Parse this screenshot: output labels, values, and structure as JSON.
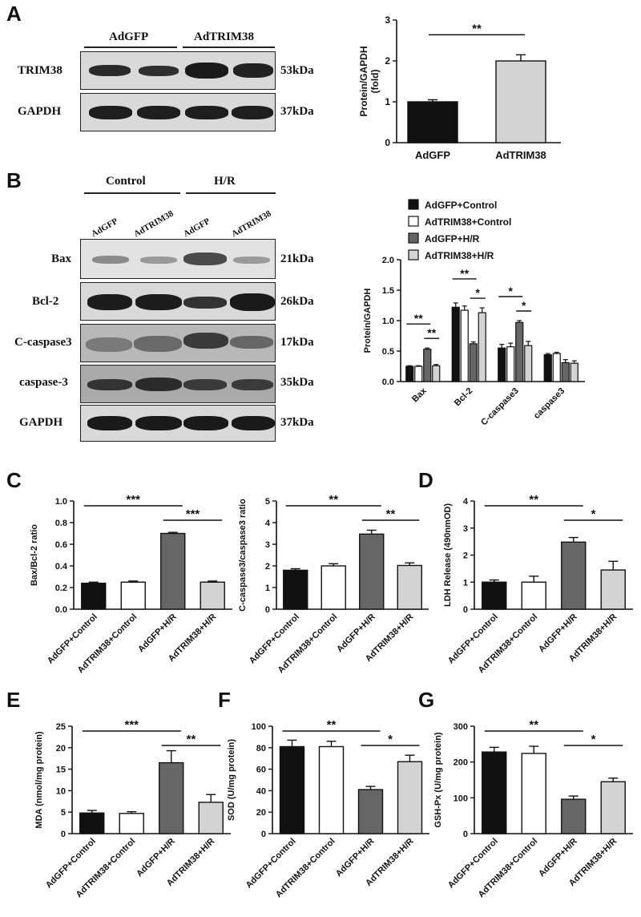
{
  "panels": {
    "A": "A",
    "B": "B",
    "C": "C",
    "D": "D",
    "E": "E",
    "F": "F",
    "G": "G"
  },
  "blot_A": {
    "groups": [
      "AdGFP",
      "AdTRIM38"
    ],
    "rows": [
      {
        "name": "TRIM38",
        "kda": "53kDa"
      },
      {
        "name": "GAPDH",
        "kda": "37kDa"
      }
    ]
  },
  "blot_B": {
    "groups": [
      "Control",
      "H/R"
    ],
    "lanes": [
      "AdGFP",
      "AdTRIM38",
      "AdGFP",
      "AdTRIM38"
    ],
    "rows": [
      {
        "name": "Bax",
        "kda": "21kDa"
      },
      {
        "name": "Bcl-2",
        "kda": "26kDa"
      },
      {
        "name": "C-caspase3",
        "kda": "17kDa"
      },
      {
        "name": "caspase-3",
        "kda": "35kDa"
      },
      {
        "name": "GAPDH",
        "kda": "37kDa"
      }
    ]
  },
  "colors": {
    "black": "#111111",
    "white": "#ffffff",
    "dark_gray": "#666666",
    "light_gray": "#d3d3d3"
  },
  "chart_data": [
    {
      "id": "A",
      "type": "bar",
      "categories": [
        "AdGFP",
        "AdTRIM38"
      ],
      "values": [
        1.0,
        2.0
      ],
      "errors": [
        0.05,
        0.15
      ],
      "ylabel": "Protein/GAPDH (fold)",
      "ylim": [
        0,
        3
      ],
      "yticks": [
        0,
        1,
        2,
        3
      ],
      "significance": [
        {
          "from": 0,
          "to": 1,
          "label": "**"
        }
      ]
    },
    {
      "id": "B",
      "type": "bar",
      "categories": [
        "Bax",
        "Bcl-2",
        "C-caspase3",
        "caspase3"
      ],
      "series": [
        {
          "name": "AdGFP+Control",
          "values": [
            0.25,
            1.22,
            0.55,
            0.44
          ],
          "errors": [
            0.01,
            0.07,
            0.06,
            0.02
          ]
        },
        {
          "name": "AdTRIM38+Control",
          "values": [
            0.25,
            1.17,
            0.57,
            0.46
          ],
          "errors": [
            0.01,
            0.07,
            0.06,
            0.02
          ]
        },
        {
          "name": "AdGFP+H/R",
          "values": [
            0.53,
            0.62,
            0.97,
            0.31
          ],
          "errors": [
            0.02,
            0.03,
            0.03,
            0.05
          ]
        },
        {
          "name": "AdTRIM38+H/R",
          "values": [
            0.26,
            1.13,
            0.59,
            0.3
          ],
          "errors": [
            0.02,
            0.08,
            0.07,
            0.04
          ]
        }
      ],
      "ylabel": "Protein/GAPDH",
      "ylim": [
        0,
        2.0
      ],
      "yticks": [
        "0.0",
        "0.5",
        "1.0",
        "1.5",
        "2.0"
      ],
      "legend": "top",
      "significance": [
        {
          "cat": 0,
          "from": 0,
          "to": 2,
          "label": "**",
          "level": 1
        },
        {
          "cat": 0,
          "from": 2,
          "to": 3,
          "label": "**",
          "level": 0
        },
        {
          "cat": 1,
          "from": 0,
          "to": 2,
          "label": "**",
          "level": 1
        },
        {
          "cat": 1,
          "from": 2,
          "to": 3,
          "label": "*",
          "level": 0
        },
        {
          "cat": 2,
          "from": 0,
          "to": 2,
          "label": "*",
          "level": 1
        },
        {
          "cat": 2,
          "from": 2,
          "to": 3,
          "label": "*",
          "level": 0
        }
      ]
    },
    {
      "id": "C1",
      "type": "bar",
      "categories": [
        "AdGFP+Control",
        "AdTRIM38+Control",
        "AdGFP+H/R",
        "AdTRIM38+H/R"
      ],
      "values": [
        0.24,
        0.25,
        0.7,
        0.25
      ],
      "errors": [
        0.01,
        0.01,
        0.01,
        0.01
      ],
      "ylabel": "Bax/Bcl-2 ratio",
      "ylim": [
        0,
        1.0
      ],
      "yticks": [
        "0.0",
        "0.2",
        "0.4",
        "0.6",
        "0.8",
        "1.0"
      ],
      "significance": [
        {
          "from": 0,
          "to": 2,
          "label": "***",
          "level": 1
        },
        {
          "from": 2,
          "to": 3,
          "label": "***",
          "level": 0
        }
      ]
    },
    {
      "id": "C2",
      "type": "bar",
      "categories": [
        "AdGFP+Control",
        "AdTRIM38+Control",
        "AdGFP+H/R",
        "AdTRIM38+H/R"
      ],
      "values": [
        1.8,
        2.0,
        3.47,
        2.02
      ],
      "errors": [
        0.07,
        0.1,
        0.18,
        0.12
      ],
      "ylabel": "C-caspase3/caspase3 ratio",
      "ylim": [
        0,
        5
      ],
      "yticks": [
        "0",
        "1",
        "2",
        "3",
        "4",
        "5"
      ],
      "significance": [
        {
          "from": 0,
          "to": 2,
          "label": "**",
          "level": 1
        },
        {
          "from": 2,
          "to": 3,
          "label": "**",
          "level": 0
        }
      ]
    },
    {
      "id": "D",
      "type": "bar",
      "categories": [
        "AdGFP+Control",
        "AdTRIM38+Control",
        "AdGFP+H/R",
        "AdTRIM38+H/R"
      ],
      "values": [
        1.0,
        1.0,
        2.48,
        1.45
      ],
      "errors": [
        0.08,
        0.22,
        0.17,
        0.32
      ],
      "ylabel": "LDH Release (490nmOD)",
      "ylim": [
        0,
        4
      ],
      "yticks": [
        "0",
        "1",
        "2",
        "3",
        "4"
      ],
      "significance": [
        {
          "from": 0,
          "to": 2,
          "label": "**",
          "level": 1
        },
        {
          "from": 2,
          "to": 3,
          "label": "*",
          "level": 0
        }
      ]
    },
    {
      "id": "E",
      "type": "bar",
      "categories": [
        "AdGFP+Control",
        "AdTRIM38+Control",
        "AdGFP+H/R",
        "AdTRIM38+H/R"
      ],
      "values": [
        4.8,
        4.7,
        16.5,
        7.3
      ],
      "errors": [
        0.6,
        0.4,
        2.8,
        1.8
      ],
      "ylabel": "MDA (nmol/mg protein)",
      "ylim": [
        0,
        25
      ],
      "yticks": [
        "0",
        "5",
        "10",
        "15",
        "20",
        "25"
      ],
      "significance": [
        {
          "from": 0,
          "to": 2,
          "label": "***",
          "level": 1
        },
        {
          "from": 2,
          "to": 3,
          "label": "**",
          "level": 0
        }
      ]
    },
    {
      "id": "F",
      "type": "bar",
      "categories": [
        "AdGFP+Control",
        "AdTRIM38+Control",
        "AdGFP+H/R",
        "AdTRIM38+H/R"
      ],
      "values": [
        81,
        81,
        41,
        67
      ],
      "errors": [
        6,
        5,
        3,
        6
      ],
      "ylabel": "SOD (U/mg protein)",
      "ylim": [
        0,
        100
      ],
      "yticks": [
        "0",
        "20",
        "40",
        "60",
        "80",
        "100"
      ],
      "significance": [
        {
          "from": 0,
          "to": 2,
          "label": "**",
          "level": 1
        },
        {
          "from": 2,
          "to": 3,
          "label": "*",
          "level": 0
        }
      ]
    },
    {
      "id": "G",
      "type": "bar",
      "categories": [
        "AdGFP+Control",
        "AdTRIM38+Control",
        "AdGFP+H/R",
        "AdTRIM38+H/R"
      ],
      "values": [
        228,
        224,
        96,
        145
      ],
      "errors": [
        13,
        20,
        9,
        10
      ],
      "ylabel": "GSH-Px (U/mg protein)",
      "ylim": [
        0,
        300
      ],
      "yticks": [
        "0",
        "100",
        "200",
        "300"
      ],
      "significance": [
        {
          "from": 0,
          "to": 2,
          "label": "**",
          "level": 1
        },
        {
          "from": 2,
          "to": 3,
          "label": "*",
          "level": 0
        }
      ]
    }
  ]
}
